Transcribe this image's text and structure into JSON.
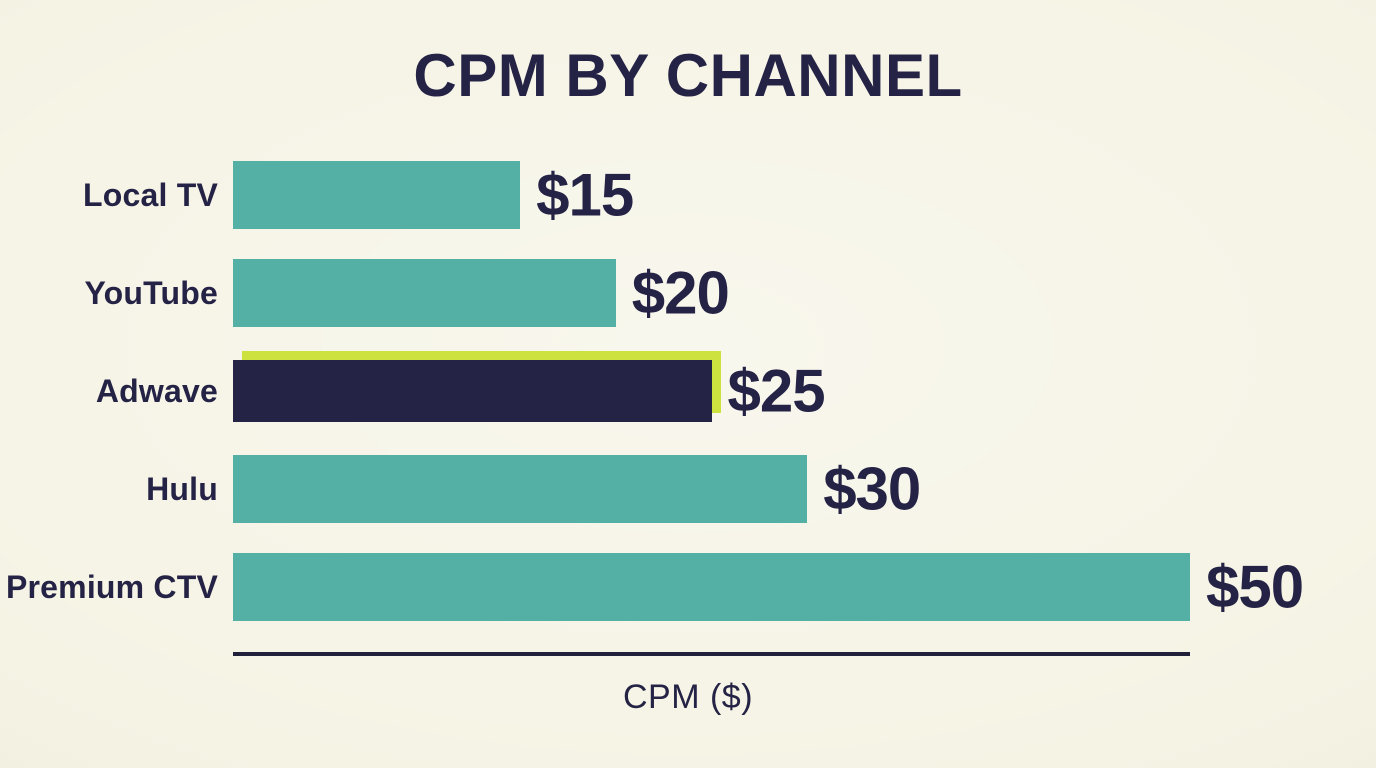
{
  "chart_data": {
    "type": "bar",
    "orientation": "horizontal",
    "title": "CPM BY CHANNEL",
    "xlabel": "CPM ($)",
    "xlim": [
      0,
      50
    ],
    "grid": false,
    "legend": "none",
    "categories": [
      "Local TV",
      "YouTube",
      "Adwave",
      "Hulu",
      "Premium CTV"
    ],
    "values": [
      15,
      20,
      25,
      30,
      50
    ],
    "highlighted_category": "Adwave",
    "bars": [
      {
        "category": "Local TV",
        "value": 15,
        "value_label": "$15",
        "highlighted": false
      },
      {
        "category": "YouTube",
        "value": 20,
        "value_label": "$20",
        "highlighted": false
      },
      {
        "category": "Adwave",
        "value": 25,
        "value_label": "$25",
        "highlighted": true
      },
      {
        "category": "Hulu",
        "value": 30,
        "value_label": "$30",
        "highlighted": false
      },
      {
        "category": "Premium CTV",
        "value": 50,
        "value_label": "$50",
        "highlighted": false
      }
    ],
    "colors": {
      "background": "#f5f3e4",
      "bar": "#54afa4",
      "highlight_bar": "#252345",
      "highlight_accent": "#cde23e",
      "text": "#252345",
      "axis": "#20203a"
    }
  }
}
